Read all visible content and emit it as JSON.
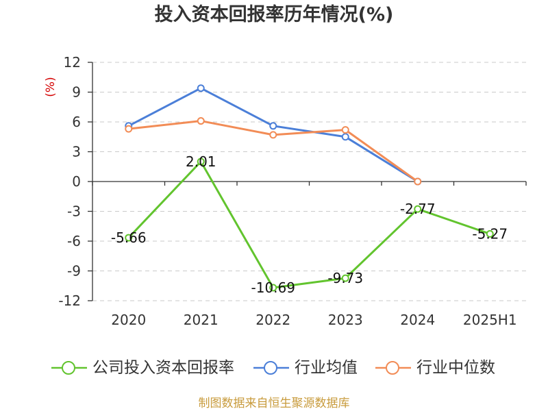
{
  "footer": "制图数据来自恒生聚源数据库",
  "chart_data": {
    "type": "line",
    "title": "投入资本回报率历年情况(%)",
    "xlabel": "",
    "ylabel": "(%)",
    "categories": [
      "2020",
      "2021",
      "2022",
      "2023",
      "2024",
      "2025H1"
    ],
    "ylim": [
      -12,
      12
    ],
    "yticks": [
      12,
      9,
      6,
      3,
      0,
      -3,
      -6,
      -9,
      -12
    ],
    "grid": true,
    "legend_position": "bottom",
    "series": [
      {
        "name": "公司投入资本回报率",
        "color": "#62c42e",
        "show_labels": true,
        "values": [
          -5.66,
          2.01,
          -10.69,
          -9.73,
          -2.77,
          -5.27
        ]
      },
      {
        "name": "行业均值",
        "color": "#4b7fd8",
        "show_labels": false,
        "values": [
          5.6,
          9.4,
          5.6,
          4.5,
          0,
          null
        ]
      },
      {
        "name": "行业中位数",
        "color": "#f28c56",
        "show_labels": false,
        "values": [
          5.3,
          6.1,
          4.7,
          5.2,
          0,
          null
        ]
      }
    ]
  }
}
